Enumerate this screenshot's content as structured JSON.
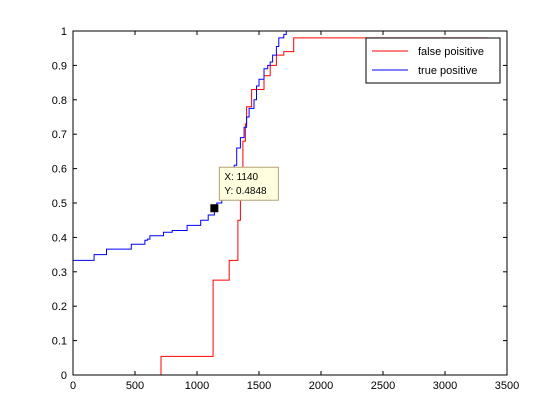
{
  "chart_data": {
    "type": "line",
    "xlim": [
      0,
      3500
    ],
    "ylim": [
      0,
      1
    ],
    "x_ticks": [
      0,
      500,
      1000,
      1500,
      2000,
      2500,
      3000,
      3500
    ],
    "y_ticks": [
      0,
      0.1,
      0.2,
      0.3,
      0.4,
      0.5,
      0.6,
      0.7,
      0.8,
      0.9,
      1
    ],
    "grid": false,
    "legend_position": "top-right",
    "series": [
      {
        "name": "false poisitive",
        "color": "#ff0000",
        "step": true,
        "points": [
          [
            0,
            0
          ],
          [
            710,
            0
          ],
          [
            710,
            0.054
          ],
          [
            1100,
            0.054
          ],
          [
            1130,
            0.276
          ],
          [
            1240,
            0.276
          ],
          [
            1260,
            0.333
          ],
          [
            1320,
            0.333
          ],
          [
            1330,
            0.45
          ],
          [
            1350,
            0.52
          ],
          [
            1360,
            0.6
          ],
          [
            1370,
            0.68
          ],
          [
            1390,
            0.73
          ],
          [
            1400,
            0.78
          ],
          [
            1440,
            0.83
          ],
          [
            1520,
            0.83
          ],
          [
            1540,
            0.87
          ],
          [
            1570,
            0.87
          ],
          [
            1590,
            0.9
          ],
          [
            1620,
            0.9
          ],
          [
            1640,
            0.93
          ],
          [
            1700,
            0.94
          ],
          [
            1760,
            0.94
          ],
          [
            1780,
            0.98
          ],
          [
            3350,
            0.98
          ]
        ]
      },
      {
        "name": "true positive",
        "color": "#0000ff",
        "step": true,
        "points": [
          [
            0,
            0.333
          ],
          [
            150,
            0.333
          ],
          [
            170,
            0.35
          ],
          [
            250,
            0.35
          ],
          [
            270,
            0.366
          ],
          [
            450,
            0.366
          ],
          [
            470,
            0.38
          ],
          [
            560,
            0.38
          ],
          [
            580,
            0.392
          ],
          [
            600,
            0.395
          ],
          [
            620,
            0.405
          ],
          [
            700,
            0.405
          ],
          [
            730,
            0.415
          ],
          [
            790,
            0.415
          ],
          [
            800,
            0.42
          ],
          [
            900,
            0.42
          ],
          [
            920,
            0.435
          ],
          [
            1000,
            0.435
          ],
          [
            1030,
            0.45
          ],
          [
            1070,
            0.45
          ],
          [
            1090,
            0.465
          ],
          [
            1140,
            0.4848
          ],
          [
            1160,
            0.5
          ],
          [
            1200,
            0.51
          ],
          [
            1210,
            0.53
          ],
          [
            1240,
            0.54
          ],
          [
            1250,
            0.565
          ],
          [
            1270,
            0.59
          ],
          [
            1300,
            0.61
          ],
          [
            1320,
            0.66
          ],
          [
            1350,
            0.69
          ],
          [
            1380,
            0.72
          ],
          [
            1400,
            0.75
          ],
          [
            1420,
            0.775
          ],
          [
            1440,
            0.775
          ],
          [
            1460,
            0.8
          ],
          [
            1480,
            0.84
          ],
          [
            1500,
            0.86
          ],
          [
            1540,
            0.89
          ],
          [
            1570,
            0.9
          ],
          [
            1590,
            0.91
          ],
          [
            1610,
            0.93
          ],
          [
            1640,
            0.955
          ],
          [
            1660,
            0.98
          ],
          [
            1700,
            0.99
          ],
          [
            1720,
            1.0
          ],
          [
            3350,
            1.0
          ]
        ]
      }
    ],
    "datatip": {
      "x": 1140,
      "y": 0.4848,
      "x_text": "X: 1140",
      "y_text": "Y: 0.4848"
    }
  }
}
